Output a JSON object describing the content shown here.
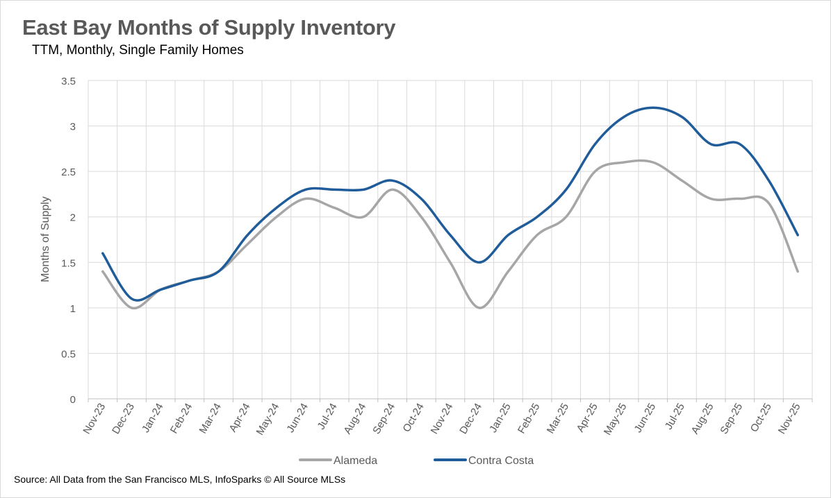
{
  "header": {
    "title": "East Bay Months of Supply Inventory",
    "subtitle": "TTM, Monthly, Single Family Homes"
  },
  "footer": {
    "source": "Source: All Data from the San Francisco MLS, InfoSparks © All Source MLSs"
  },
  "chart_data": {
    "type": "line",
    "title": "East Bay Months of Supply Inventory",
    "subtitle": "TTM, Monthly, Single Family Homes",
    "xlabel": "",
    "ylabel": "Months of Supply",
    "ylim": [
      0,
      3.5
    ],
    "yticks": [
      0,
      0.5,
      1,
      1.5,
      2,
      2.5,
      3,
      3.5
    ],
    "ytick_labels": [
      "0",
      "0.5",
      "1",
      "1.5",
      "2",
      "2.5",
      "3",
      "3.5"
    ],
    "grid": true,
    "legend_position": "bottom",
    "categories": [
      "Nov-23",
      "Dec-23",
      "Jan-24",
      "Feb-24",
      "Mar-24",
      "Apr-24",
      "May-24",
      "Jun-24",
      "Jul-24",
      "Aug-24",
      "Sep-24",
      "Oct-24",
      "Nov-24",
      "Dec-24",
      "Jan-25",
      "Feb-25",
      "Mar-25",
      "Apr-25",
      "May-25",
      "Jun-25",
      "Jul-25",
      "Aug-25",
      "Sep-25",
      "Oct-25",
      "Nov-25"
    ],
    "series": [
      {
        "name": "Alameda",
        "color": "#a6a6a6",
        "values": [
          1.4,
          1.0,
          1.2,
          1.3,
          1.4,
          1.7,
          2.0,
          2.2,
          2.1,
          2.0,
          2.3,
          2.0,
          1.5,
          1.0,
          1.4,
          1.8,
          2.0,
          2.5,
          2.6,
          2.6,
          2.4,
          2.2,
          2.2,
          2.15,
          1.4
        ]
      },
      {
        "name": "Contra Costa",
        "color": "#1f5c99",
        "values": [
          1.6,
          1.1,
          1.2,
          1.3,
          1.4,
          1.8,
          2.1,
          2.3,
          2.3,
          2.3,
          2.4,
          2.2,
          1.8,
          1.5,
          1.8,
          2.0,
          2.3,
          2.8,
          3.1,
          3.2,
          3.1,
          2.8,
          2.8,
          2.4,
          1.8
        ]
      }
    ]
  }
}
